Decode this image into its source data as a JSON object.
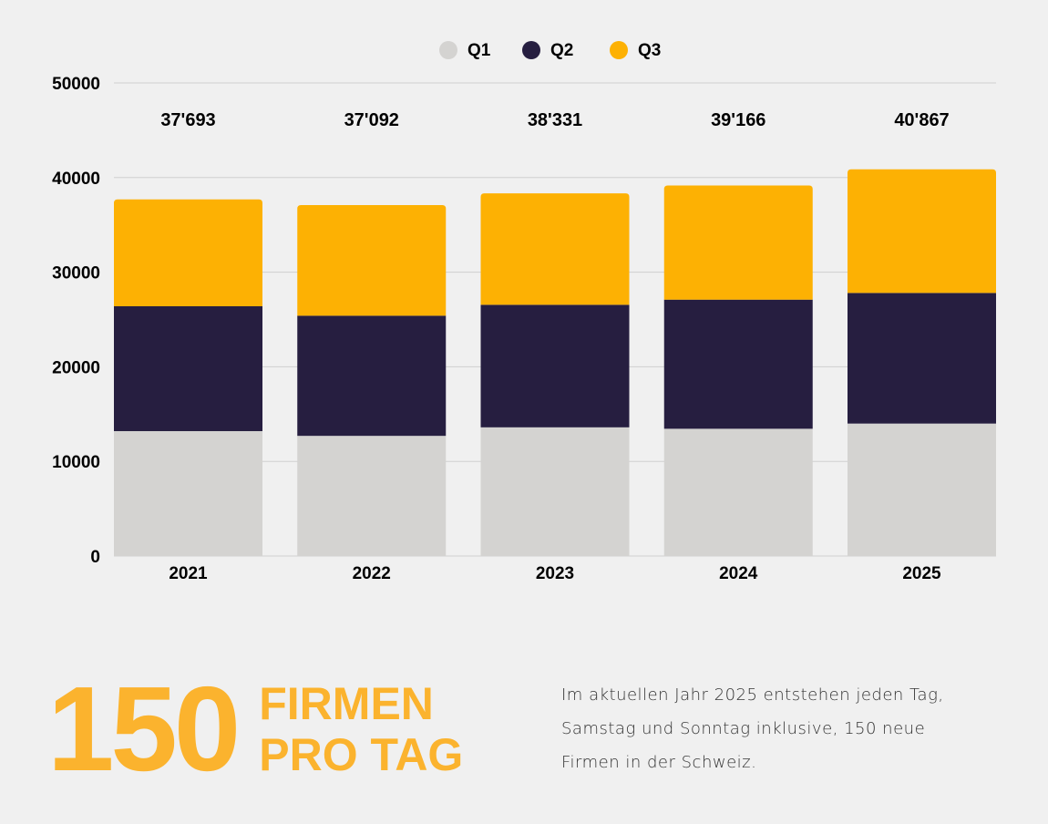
{
  "chart_data": {
    "type": "bar",
    "stacked": true,
    "categories": [
      "2021",
      "2022",
      "2023",
      "2024",
      "2025"
    ],
    "series": [
      {
        "name": "Q1",
        "color": "#d4d3d1",
        "values": [
          13200,
          12700,
          13600,
          13450,
          14000
        ]
      },
      {
        "name": "Q2",
        "color": "#261e40",
        "values": [
          13200,
          12700,
          12950,
          13650,
          13800
        ]
      },
      {
        "name": "Q3",
        "color": "#fdb103",
        "values": [
          11293,
          11692,
          11781,
          12066,
          13067
        ]
      }
    ],
    "totals": [
      "37'693",
      "37'092",
      "38'331",
      "39'166",
      "40'867"
    ],
    "yticks": [
      "0",
      "10000",
      "20000",
      "30000",
      "40000",
      "50000"
    ],
    "ylim": [
      0,
      50000
    ],
    "legend_position": "top-center",
    "grid": true
  },
  "stat": {
    "number": "150",
    "line1": "FIRMEN",
    "line2": "PRO TAG"
  },
  "description": {
    "line1": "Im aktuellen Jahr 2025 entstehen jeden Tag,",
    "line2": "Samstag und Sonntag inklusive, 150 neue",
    "line3": "Firmen in der Schweiz."
  }
}
